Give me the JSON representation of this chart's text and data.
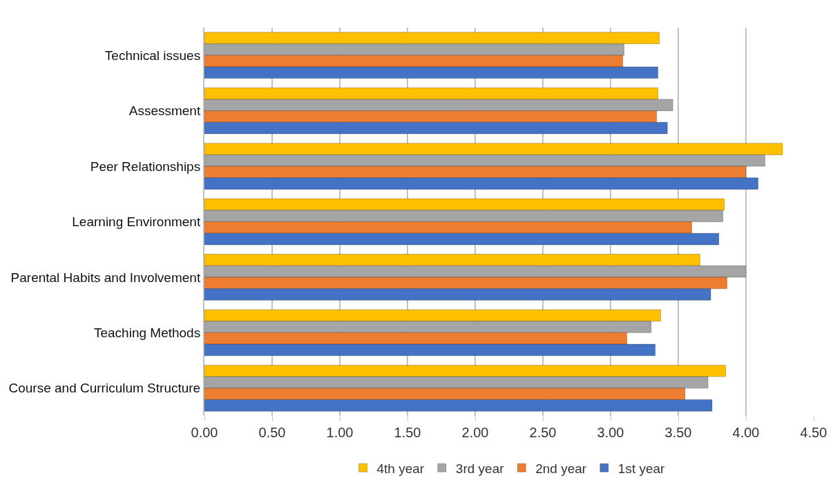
{
  "chart_data": {
    "type": "bar",
    "orientation": "horizontal",
    "categories": [
      "Technical issues",
      "Assessment",
      "Peer Relationships",
      "Learning Environment",
      "Parental Habits and Involvement",
      "Teaching Methods",
      "Course and Curriculum Structure"
    ],
    "series": [
      {
        "name": "4th year",
        "color": "#ffc000",
        "values": [
          3.36,
          3.35,
          4.27,
          3.84,
          3.66,
          3.37,
          3.85
        ]
      },
      {
        "name": "3rd year",
        "color": "#a5a5a5",
        "values": [
          3.1,
          3.46,
          4.14,
          3.83,
          4.0,
          3.3,
          3.72
        ]
      },
      {
        "name": "2nd year",
        "color": "#ed7d31",
        "values": [
          3.09,
          3.34,
          4.0,
          3.6,
          3.86,
          3.12,
          3.55
        ]
      },
      {
        "name": "1st year",
        "color": "#4472c4",
        "values": [
          3.35,
          3.42,
          4.09,
          3.8,
          3.74,
          3.33,
          3.75
        ]
      }
    ],
    "xlim": [
      0,
      4.5
    ],
    "xticks": [
      {
        "value": 0,
        "label": "0.00"
      },
      {
        "value": 0.5,
        "label": "0.50"
      },
      {
        "value": 1,
        "label": "1.00"
      },
      {
        "value": 1.5,
        "label": "1.50"
      },
      {
        "value": 2,
        "label": "2.00"
      },
      {
        "value": 2.5,
        "label": "2.50"
      },
      {
        "value": 3,
        "label": "3.00"
      },
      {
        "value": 3.5,
        "label": "3.50"
      },
      {
        "value": 4,
        "label": "4.00"
      },
      {
        "value": 4.5,
        "label": "4.50"
      }
    ],
    "grid": "x",
    "legend": "bottom"
  }
}
